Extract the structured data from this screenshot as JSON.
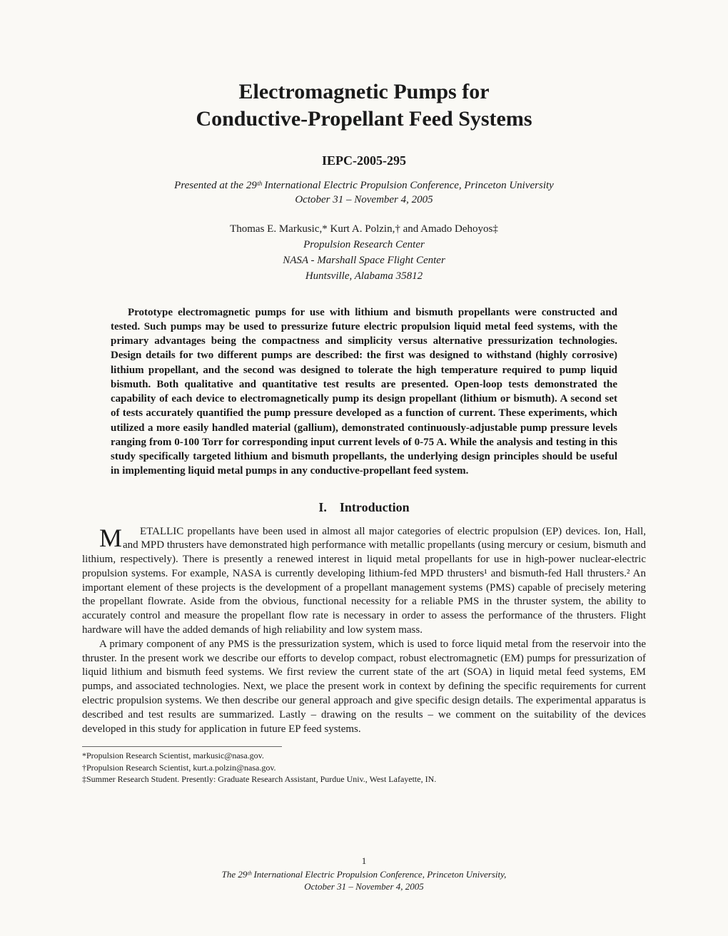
{
  "title_line1": "Electromagnetic Pumps for",
  "title_line2": "Conductive-Propellant Feed Systems",
  "paper_id": "IEPC-2005-295",
  "presented_line1": "Presented at the 29ᵗʰ International Electric Propulsion Conference, Princeton University",
  "presented_line2": "October 31 – November 4, 2005",
  "authors": "Thomas E. Markusic,* Kurt A. Polzin,† and Amado Dehoyos‡",
  "affil1": "Propulsion Research Center",
  "affil2": "NASA - Marshall Space Flight Center",
  "affil3": "Huntsville, Alabama 35812",
  "abstract": "Prototype electromagnetic pumps for use with lithium and bismuth propellants were constructed and tested. Such pumps may be used to pressurize future electric propulsion liquid metal feed systems, with the primary advantages being the compactness and simplicity versus alternative pressurization technologies. Design details for two different pumps are described: the first was designed to withstand (highly corrosive) lithium propellant, and the second was designed to tolerate the high temperature required to pump liquid bismuth. Both qualitative and quantitative test results are presented. Open-loop tests demonstrated the capability of each device to electromagnetically pump its design propellant (lithium or bismuth). A second set of tests accurately quantified the pump pressure developed as a function of current. These experiments, which utilized a more easily handled material (gallium), demonstrated continuously-adjustable pump pressure levels ranging from 0-100 Torr for corresponding input current levels of 0-75 A. While the analysis and testing in this study specifically targeted lithium and bismuth propellants, the underlying design principles should be useful in implementing liquid metal pumps in any conductive-propellant feed system.",
  "section_number": "I.",
  "section_title": "Introduction",
  "para1": "METALLIC propellants have been used in almost all major categories of electric propulsion (EP) devices. Ion, Hall, and MPD thrusters have demonstrated high performance with metallic propellants (using mercury or cesium, bismuth and lithium, respectively). There is presently a renewed interest in liquid metal propellants for use in high-power nuclear-electric propulsion systems. For example, NASA is currently developing lithium-fed MPD thrusters¹ and bismuth-fed Hall thrusters.² An important element of these projects is the development of a propellant management systems (PMS) capable of precisely metering the propellant flowrate. Aside from the obvious, functional necessity for a reliable PMS in the thruster system, the ability to accurately control and measure the propellant flow rate is necessary in order to assess the performance of the thrusters. Flight hardware will have the added demands of high reliability and low system mass.",
  "para2": "A primary component of any PMS is the pressurization system, which is used to force liquid metal from the reservoir into the thruster. In the present work we describe our efforts to develop compact, robust electromagnetic (EM) pumps for pressurization of liquid lithium and bismuth feed systems. We first review the current state of the art (SOA) in liquid metal feed systems, EM pumps, and associated technologies. Next, we place the present work in context by defining the specific requirements for current electric propulsion systems. We then describe our general approach and give specific design details. The experimental apparatus is described and test results are summarized. Lastly – drawing on the results – we comment on the suitability of the devices developed in this study for application in future EP feed systems.",
  "footnote1": "*Propulsion Research Scientist, markusic@nasa.gov.",
  "footnote2": "†Propulsion Research Scientist, kurt.a.polzin@nasa.gov.",
  "footnote3": "‡Summer Research Student. Presently: Graduate Research Assistant, Purdue Univ., West Lafayette, IN.",
  "page_number": "1",
  "footer_line1": "The 29ᵗʰ International Electric Propulsion Conference, Princeton University,",
  "footer_line2": "October 31 – November 4, 2005"
}
